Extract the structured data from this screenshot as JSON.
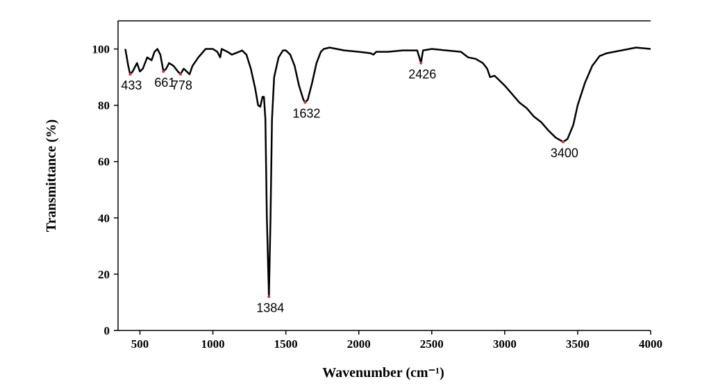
{
  "chart_data": {
    "type": "line",
    "x_label": "Wavenumber (cm⁻¹)",
    "y_label": "Transmittance (%)",
    "xlim": [
      350,
      4000
    ],
    "ylim": [
      0,
      110
    ],
    "xticks": [
      500,
      1000,
      1500,
      2000,
      2500,
      3000,
      3500,
      4000
    ],
    "yticks": [
      0,
      20,
      40,
      60,
      80,
      100
    ],
    "color": "#000000",
    "x": [
      400,
      420,
      433,
      450,
      480,
      500,
      520,
      550,
      580,
      600,
      620,
      640,
      661,
      680,
      700,
      730,
      760,
      778,
      800,
      820,
      840,
      860,
      900,
      950,
      1000,
      1030,
      1050,
      1060,
      1100,
      1130,
      1180,
      1200,
      1230,
      1260,
      1290,
      1310,
      1325,
      1340,
      1350,
      1360,
      1370,
      1384,
      1395,
      1405,
      1420,
      1450,
      1480,
      1500,
      1530,
      1560,
      1590,
      1620,
      1632,
      1650,
      1680,
      1710,
      1740,
      1760,
      1800,
      1900,
      2000,
      2080,
      2100,
      2120,
      2200,
      2300,
      2400,
      2415,
      2426,
      2440,
      2500,
      2600,
      2700,
      2750,
      2800,
      2850,
      2880,
      2900,
      2930,
      2960,
      3000,
      3050,
      3100,
      3150,
      3200,
      3250,
      3300,
      3350,
      3400,
      3430,
      3470,
      3500,
      3550,
      3600,
      3650,
      3700,
      3800,
      3900,
      4000
    ],
    "y": [
      100,
      94,
      91,
      92,
      95,
      92,
      93,
      97,
      96,
      99,
      100,
      98,
      92,
      93,
      95,
      94,
      92,
      91,
      93,
      92,
      91,
      94,
      97,
      100,
      100,
      99,
      97,
      100,
      99,
      98,
      99,
      99.5,
      98,
      93,
      86,
      80,
      79.5,
      83,
      83,
      75,
      40,
      12,
      40,
      75,
      90,
      97,
      99.5,
      99.5,
      98,
      94,
      87,
      82,
      81,
      82,
      88,
      95,
      99,
      100,
      100.5,
      99.5,
      99,
      98.5,
      98,
      99,
      99,
      99.5,
      99.5,
      97,
      95,
      99.5,
      100,
      99.5,
      99,
      97,
      96.5,
      95,
      93,
      90,
      90.5,
      89,
      87,
      84,
      81,
      79,
      76,
      74,
      71,
      68.5,
      67,
      68,
      73,
      80,
      88,
      94,
      97.5,
      98.5,
      99.5,
      100.5,
      100
    ],
    "annotations": [
      {
        "x": 433,
        "y": 91
      },
      {
        "x": 661,
        "y": 92
      },
      {
        "x": 778,
        "y": 91
      },
      {
        "x": 1384,
        "y": 12
      },
      {
        "x": 1632,
        "y": 81
      },
      {
        "x": 2426,
        "y": 95
      },
      {
        "x": 3400,
        "y": 67
      }
    ]
  }
}
